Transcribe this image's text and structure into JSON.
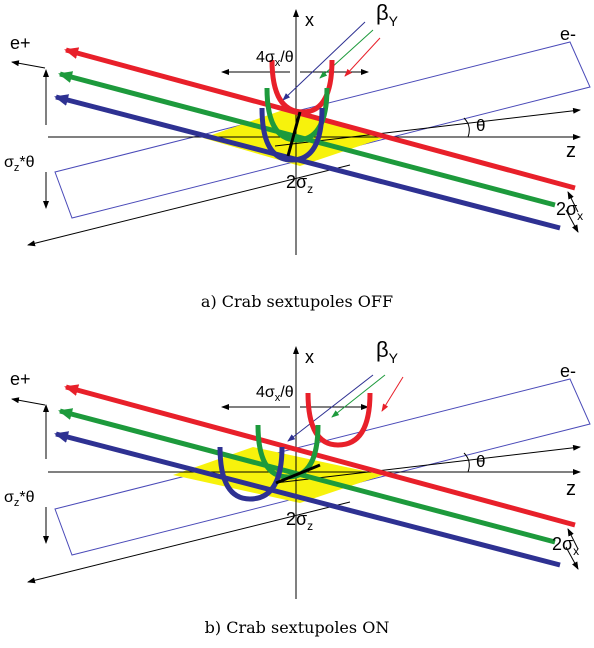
{
  "colors": {
    "red": "#e8202a",
    "green": "#1d9a3c",
    "blue": "#2e3192",
    "yellow": "#f7f20c",
    "box_outline": "#4a4ab8"
  },
  "panels": [
    {
      "caption": "a) Crab sextupoles OFF",
      "labels": {
        "x": "x",
        "z": "z",
        "theta": "θ",
        "e_plus": "e+",
        "e_minus": "e-",
        "beta_sym": "β",
        "beta_sub": "Y",
        "sigma_sym": "σ",
        "four_pre": "4",
        "four_sub": "x",
        "four_post": "/θ",
        "sz_sub": "z",
        "sz_post": "*θ",
        "two_pre": "2",
        "two_sub_z": "z",
        "two_sub_x": "x"
      }
    },
    {
      "caption": "b) Crab sextupoles ON",
      "labels": {
        "x": "x",
        "z": "z",
        "theta": "θ",
        "e_plus": "e+",
        "e_minus": "e-",
        "beta_sym": "β",
        "beta_sub": "Y",
        "sigma_sym": "σ",
        "four_pre": "4",
        "four_sub": "x",
        "four_post": "/θ",
        "sz_sub": "z",
        "sz_post": "*θ",
        "two_pre": "2",
        "two_sub_z": "z",
        "two_sub_x": "x"
      }
    }
  ]
}
